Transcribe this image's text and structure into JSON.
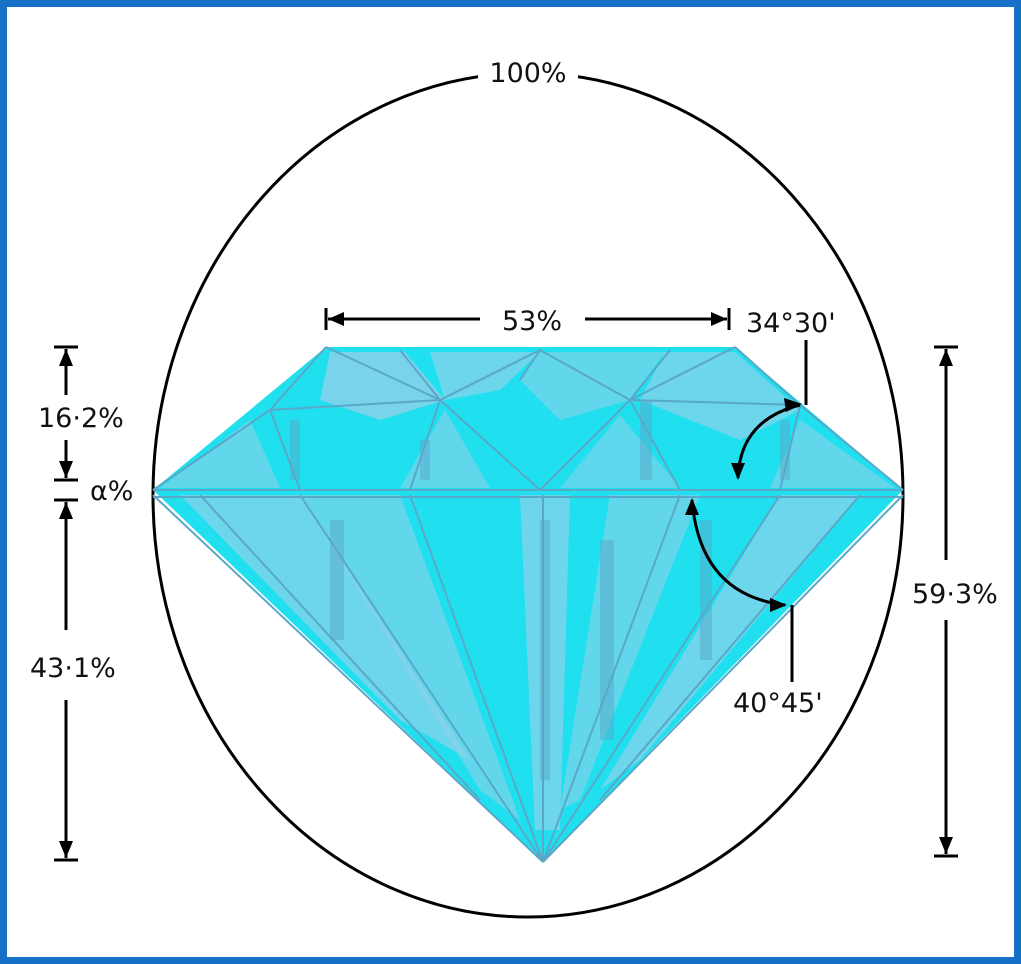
{
  "labels": {
    "diameter": "100%",
    "table": "53%",
    "crown_angle": "34°30'",
    "crown_height": "16·2%",
    "girdle": "α%",
    "pavilion_depth": "43·1%",
    "total_depth": "59·3%",
    "pavilion_angle": "40°45'"
  },
  "colors": {
    "frame": "#1670c6",
    "diamond": "#20e0f0",
    "diamond_shade": "#8fd0ea",
    "facet_line": "#5aa8c8",
    "ink": "#000000"
  }
}
